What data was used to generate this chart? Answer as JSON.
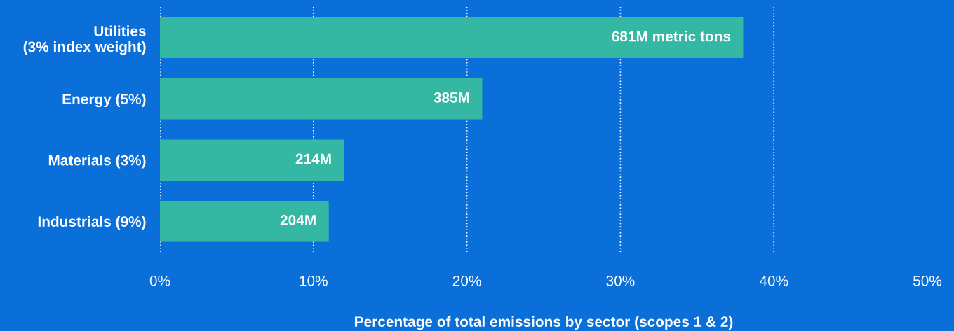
{
  "chart_data": {
    "type": "bar",
    "orientation": "horizontal",
    "categories": [
      "Utilities\n(3% index weight)",
      "Energy (5%)",
      "Materials (3%)",
      "Industrials (9%)"
    ],
    "values": [
      38,
      21,
      12,
      11
    ],
    "annotations": [
      {
        "text": "681M metric tons",
        "x": 38,
        "y": "Utilities\n(3% index weight)"
      },
      {
        "text": "385M",
        "x": 21,
        "y": "Energy (5%)"
      },
      {
        "text": "214M",
        "x": 12,
        "y": "Materials (3%)"
      },
      {
        "text": "204M",
        "x": 11,
        "y": "Industrials (9%)"
      }
    ],
    "color": "#34b8a4",
    "xlim": [
      0,
      50
    ],
    "xticks": [
      {
        "value": 0,
        "label": "0%"
      },
      {
        "value": 10,
        "label": "10%"
      },
      {
        "value": 20,
        "label": "20%"
      },
      {
        "value": 30,
        "label": "30%"
      },
      {
        "value": 40,
        "label": "40%"
      },
      {
        "value": 50,
        "label": "50%"
      }
    ],
    "xlabel": "Percentage of total emissions by sector (scopes 1 & 2)",
    "grid": "x",
    "legend": false
  }
}
